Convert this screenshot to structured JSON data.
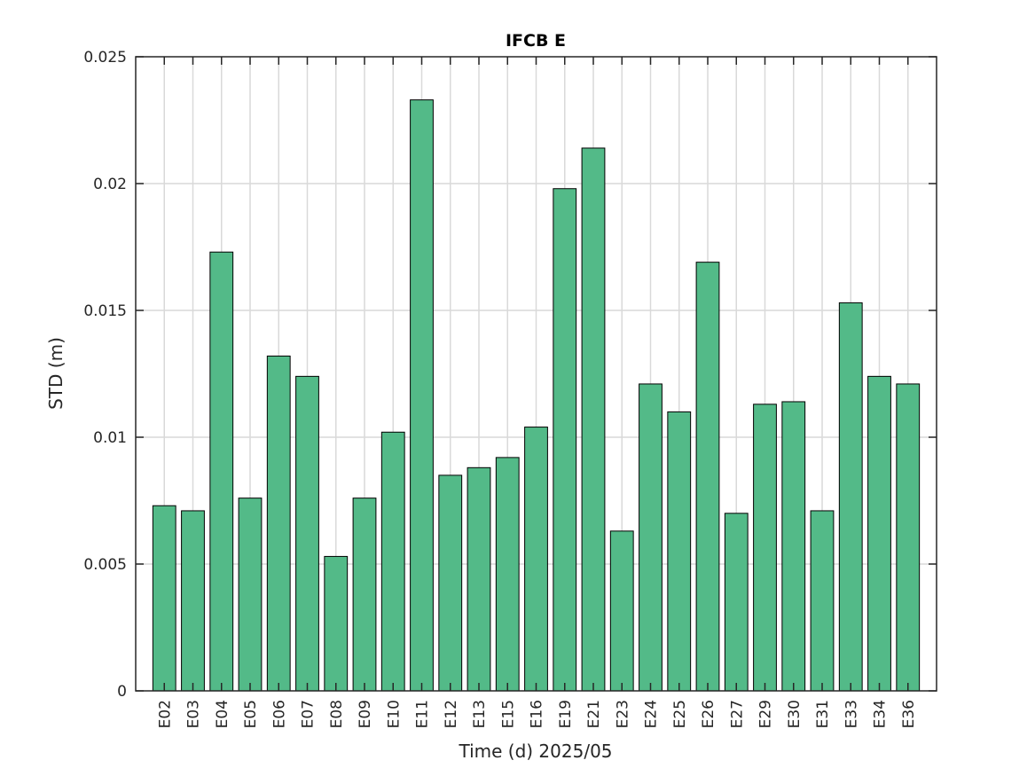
{
  "chart_data": {
    "type": "bar",
    "title": "IFCB E",
    "xlabel": "Time (d)  2025/05",
    "ylabel": "STD (m)",
    "ylim": [
      0,
      0.025
    ],
    "yticks": [
      "0",
      "0.005",
      "0.01",
      "0.015",
      "0.02",
      "0.025"
    ],
    "grid": true,
    "categories": [
      "E02",
      "E03",
      "E04",
      "E05",
      "E06",
      "E07",
      "E08",
      "E09",
      "E10",
      "E11",
      "E12",
      "E13",
      "E15",
      "E16",
      "E19",
      "E21",
      "E23",
      "E24",
      "E25",
      "E26",
      "E27",
      "E29",
      "E30",
      "E31",
      "E33",
      "E34",
      "E36"
    ],
    "values": [
      0.0073,
      0.0071,
      0.0173,
      0.0076,
      0.0132,
      0.0124,
      0.0053,
      0.0076,
      0.0102,
      0.0233,
      0.0085,
      0.0088,
      0.0092,
      0.0104,
      0.0198,
      0.0214,
      0.0063,
      0.0121,
      0.011,
      0.0169,
      0.007,
      0.0113,
      0.0114,
      0.0071,
      0.0153,
      0.0124,
      0.0121
    ],
    "colors": {
      "bar": "#53ba88",
      "edge": "#000000",
      "grid": "#d9d9d9",
      "axis": "#262626"
    }
  }
}
